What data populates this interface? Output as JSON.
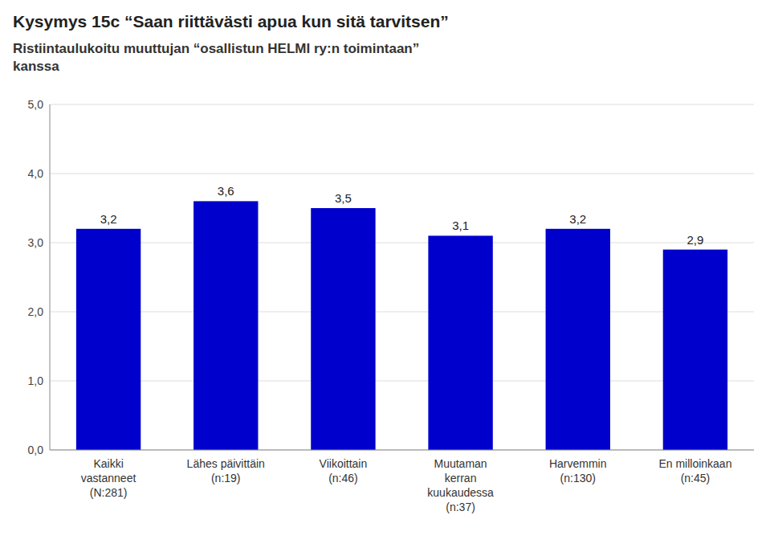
{
  "chart_data": {
    "type": "bar",
    "title": "Kysymys 15c “Saan riittävästi apua kun sitä tarvitsen”",
    "subtitle": "Ristiintaulukoitu muuttujan “osallistun HELMI ry:n toimintaan”\nkanssa",
    "categories": [
      "Kaikki\nvastanneet\n(N:281)",
      "Lähes päivittäin\n(n:19)",
      "Viikoittain\n(n:46)",
      "Muutaman\nkerran\nkuukaudessa\n(n:37)",
      "Harvemmin\n(n:130)",
      "En milloinkaan\n(n:45)"
    ],
    "values": [
      3.2,
      3.6,
      3.5,
      3.1,
      3.2,
      2.9
    ],
    "value_labels": [
      "3,2",
      "3,6",
      "3,5",
      "3,1",
      "3,2",
      "2,9"
    ],
    "color": "#0000CC",
    "ylim": [
      0.0,
      5.0
    ],
    "yticks": [
      {
        "value": 0.0,
        "label": "0,0"
      },
      {
        "value": 1.0,
        "label": "1,0"
      },
      {
        "value": 2.0,
        "label": "2,0"
      },
      {
        "value": 3.0,
        "label": "3,0"
      },
      {
        "value": 4.0,
        "label": "4,0"
      },
      {
        "value": 5.0,
        "label": "5,0"
      }
    ],
    "grid": true,
    "data_labels": true
  }
}
